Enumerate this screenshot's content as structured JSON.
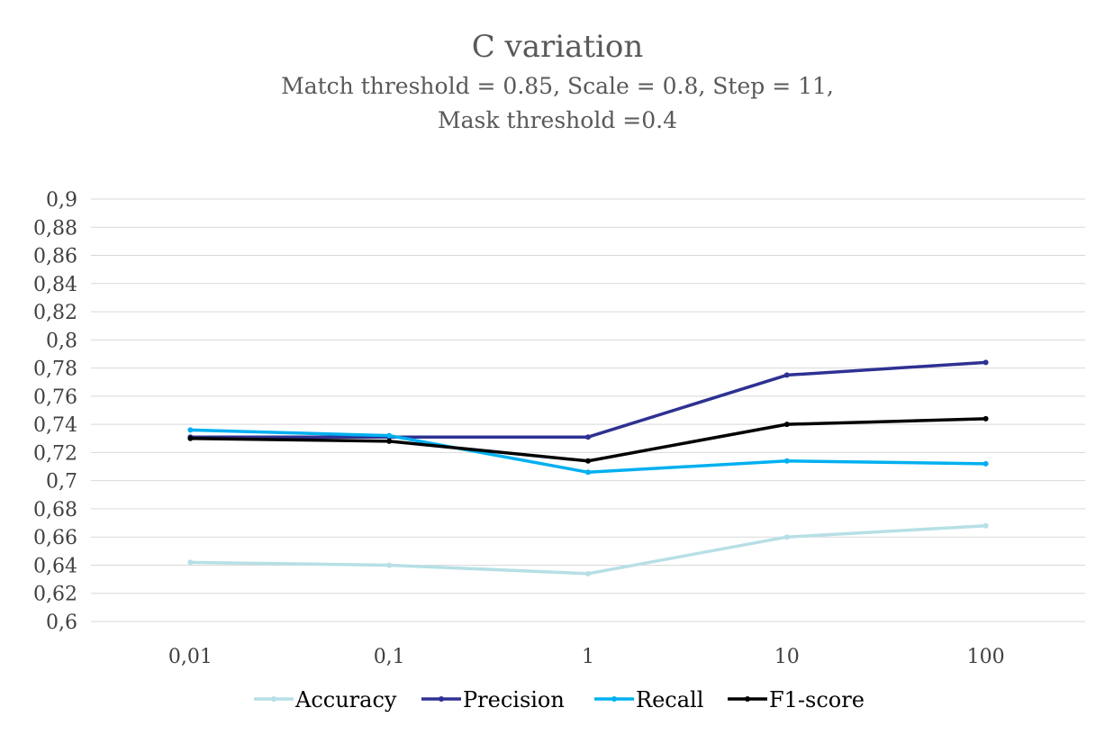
{
  "chart_data": {
    "type": "line",
    "title": "C variation",
    "subtitle_lines": [
      "Match threshold = 0.85, Scale = 0.8, Step = 11,",
      "Mask threshold =0.4"
    ],
    "categories": [
      "0,01",
      "0,1",
      "1",
      "10",
      "100"
    ],
    "ylim": [
      0.6,
      0.9
    ],
    "yticks": [
      0.6,
      0.62,
      0.64,
      0.66,
      0.68,
      0.7,
      0.72,
      0.74,
      0.76,
      0.78,
      0.8,
      0.82,
      0.84,
      0.86,
      0.88,
      0.9
    ],
    "ytick_labels": [
      "0,6",
      "0,62",
      "0,64",
      "0,66",
      "0,68",
      "0,7",
      "0,72",
      "0,74",
      "0,76",
      "0,78",
      "0,8",
      "0,82",
      "0,84",
      "0,86",
      "0,88",
      "0,9"
    ],
    "grid": true,
    "legend_position": "bottom",
    "series": [
      {
        "name": "Accuracy",
        "color": "#b7dfe6",
        "values": [
          0.642,
          0.64,
          0.634,
          0.66,
          0.668
        ]
      },
      {
        "name": "Precision",
        "color": "#2e3192",
        "values": [
          0.731,
          0.731,
          0.731,
          0.775,
          0.784
        ]
      },
      {
        "name": "Recall",
        "color": "#00b0f0",
        "values": [
          0.736,
          0.732,
          0.706,
          0.714,
          0.712
        ]
      },
      {
        "name": "F1-score",
        "color": "#000000",
        "values": [
          0.73,
          0.728,
          0.714,
          0.74,
          0.744
        ]
      }
    ]
  }
}
